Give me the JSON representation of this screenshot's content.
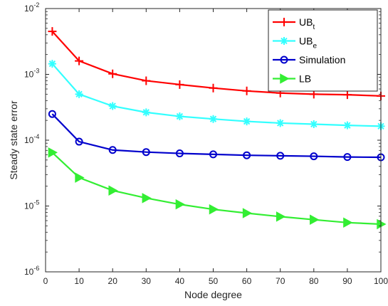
{
  "chart_data": {
    "type": "line",
    "xlabel": "Node degree",
    "ylabel": "Steady state error",
    "x_scale": "linear",
    "y_scale": "log",
    "xlim": [
      0,
      100
    ],
    "ylim": [
      1e-06,
      0.01
    ],
    "grid": false,
    "legend_position": "top-right",
    "x_ticks": [
      0,
      10,
      20,
      30,
      40,
      50,
      60,
      70,
      80,
      90,
      100
    ],
    "x_tick_labels": [
      "0",
      "10",
      "20",
      "30",
      "40",
      "50",
      "60",
      "70",
      "80",
      "90",
      "100"
    ],
    "y_ticks": [
      1e-06,
      1e-05,
      0.0001,
      0.001,
      0.01
    ],
    "y_tick_labels": [
      {
        "base": "10",
        "exp": "-6"
      },
      {
        "base": "10",
        "exp": "-5"
      },
      {
        "base": "10",
        "exp": "-4"
      },
      {
        "base": "10",
        "exp": "-3"
      },
      {
        "base": "10",
        "exp": "-2"
      }
    ],
    "x": [
      2,
      10,
      20,
      30,
      40,
      50,
      60,
      70,
      80,
      90,
      100
    ],
    "series": [
      {
        "name": "UB_t",
        "label_main": "UB",
        "label_sub": "t",
        "color": "#ff0000",
        "marker": "plus",
        "values": [
          0.0045,
          0.0016,
          0.00102,
          0.0008,
          0.0007,
          0.00062,
          0.00056,
          0.00052,
          0.0005,
          0.00049,
          0.00047
        ]
      },
      {
        "name": "UB_e",
        "label_main": "UB",
        "label_sub": "e",
        "color": "#33ffff",
        "marker": "asterisk",
        "values": [
          0.00145,
          0.0005,
          0.00033,
          0.000265,
          0.00023,
          0.00021,
          0.000193,
          0.000182,
          0.000175,
          0.000168,
          0.000163
        ]
      },
      {
        "name": "Simulation",
        "label_main": "Simulation",
        "label_sub": "",
        "color": "#0000cc",
        "marker": "circle",
        "values": [
          0.00025,
          9.5e-05,
          7.1e-05,
          6.6e-05,
          6.3e-05,
          6.1e-05,
          5.9e-05,
          5.8e-05,
          5.7e-05,
          5.55e-05,
          5.5e-05
        ]
      },
      {
        "name": "LB",
        "label_main": "LB",
        "label_sub": "",
        "color": "#33ee33",
        "marker": "triangle-right",
        "values": [
          6.5e-05,
          2.7e-05,
          1.72e-05,
          1.32e-05,
          1.06e-05,
          8.9e-06,
          7.8e-06,
          6.9e-06,
          6.2e-06,
          5.6e-06,
          5.3e-06
        ]
      }
    ]
  }
}
